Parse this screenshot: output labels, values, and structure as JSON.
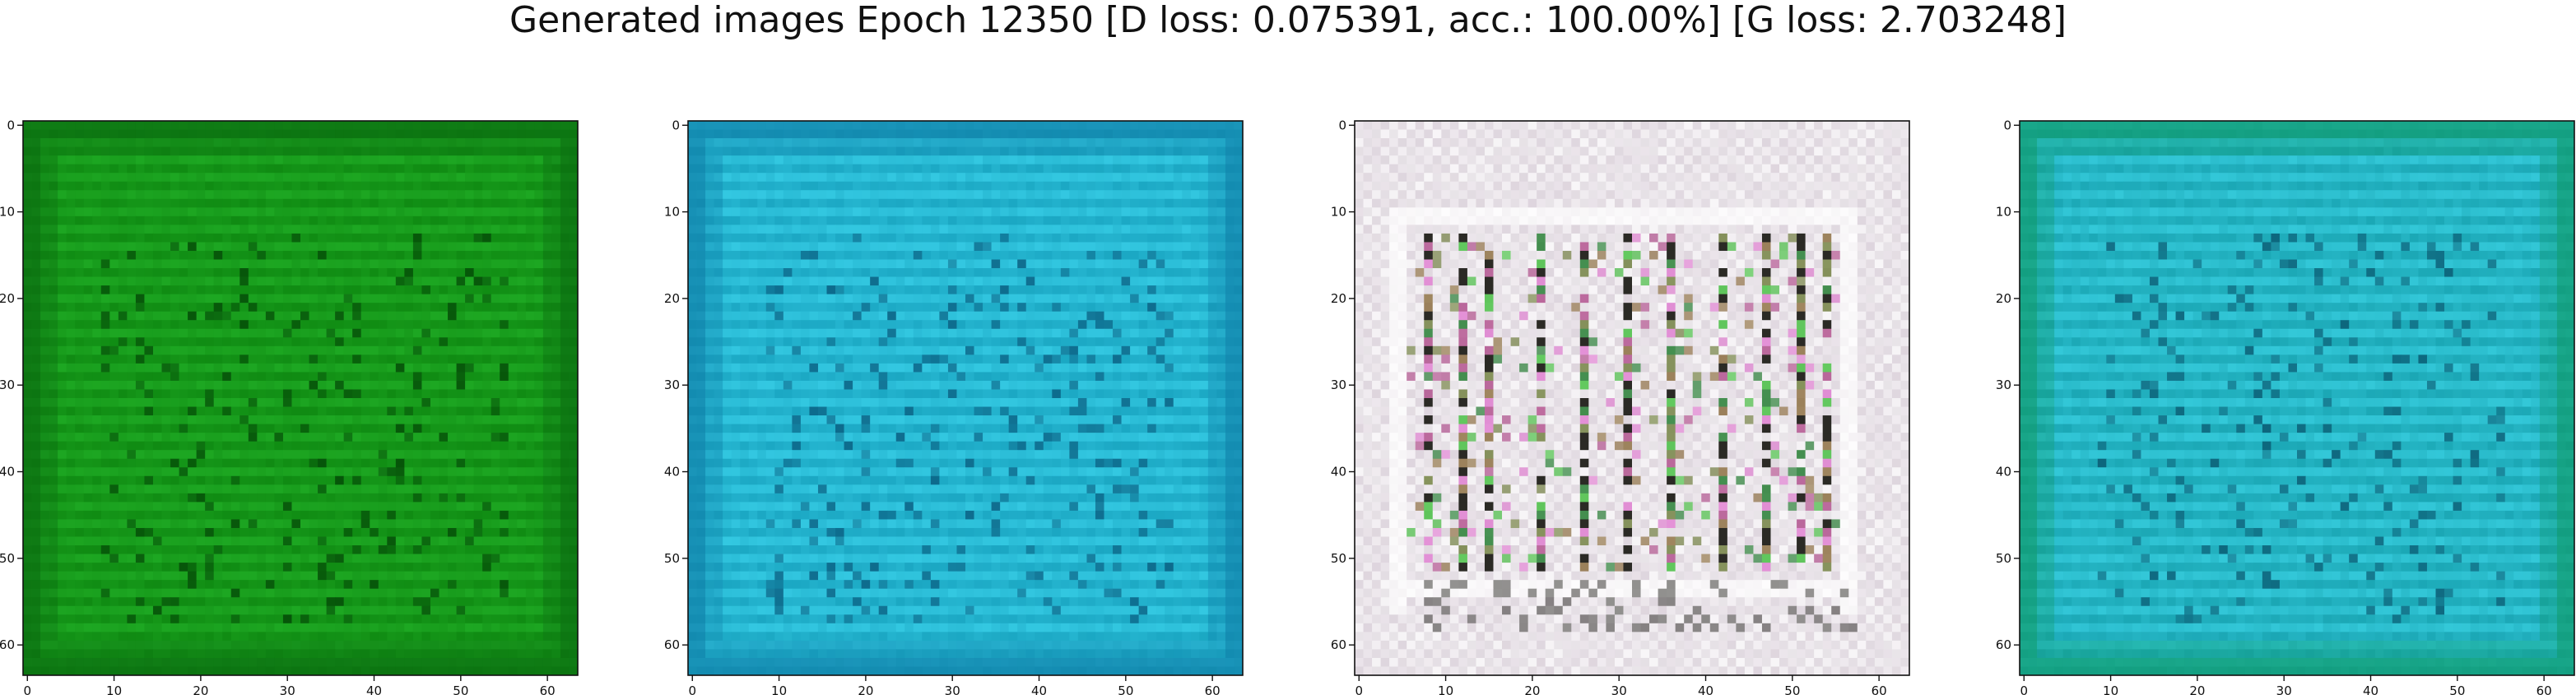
{
  "title": "Generated images Epoch 12350 [D loss: 0.075391, acc.: 100.00%] [G loss: 2.703248]",
  "image_size": 64,
  "ticks": [
    0,
    10,
    20,
    30,
    40,
    50,
    60
  ],
  "panels": [
    {
      "id": "sample-1",
      "style": "stripes",
      "base": "#0f8a12",
      "light": "#24b52a",
      "dark": "#044a07",
      "edge": "#0a6b10"
    },
    {
      "id": "sample-2",
      "style": "stripes",
      "base": "#1aa6c2",
      "light": "#3fd8f0",
      "dark": "#0a5f82",
      "edge": "#0f7fa8"
    },
    {
      "id": "sample-3",
      "style": "noisy",
      "base": "#e7e2e6",
      "light": "#ffffff",
      "dark": "#2b2a25",
      "edge": "#c9b8c8",
      "accents": [
        "#3fbf3a",
        "#e07ad0",
        "#8a6b3a",
        "#1c7a2a",
        "#b04b8a",
        "#6e7e3a"
      ]
    },
    {
      "id": "sample-4",
      "style": "stripes",
      "base": "#1aa6b4",
      "light": "#3fd8ea",
      "dark": "#0a5a72",
      "edge": "#0f9a6a"
    }
  ]
}
